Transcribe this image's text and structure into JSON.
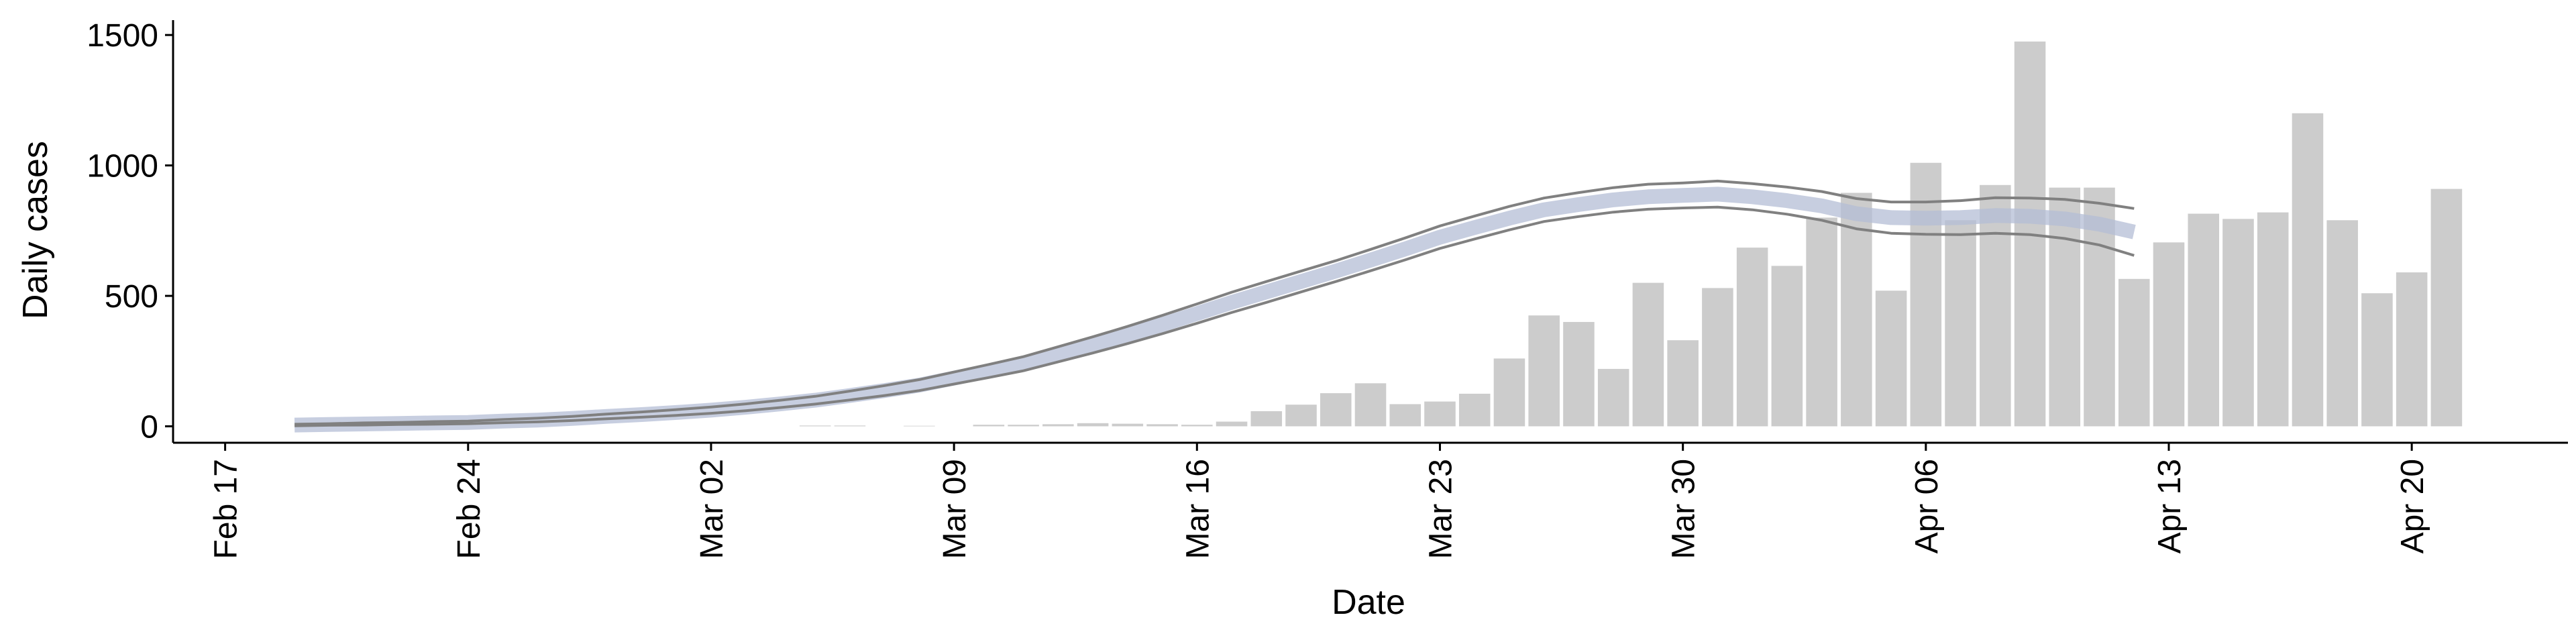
{
  "chart_data": {
    "type": "bar",
    "x_label": "Date",
    "y_label": "Daily cases",
    "categories": [
      "Feb 17",
      null,
      null,
      null,
      null,
      null,
      null,
      "Feb 24",
      null,
      null,
      null,
      null,
      null,
      null,
      "Mar 02",
      null,
      null,
      null,
      null,
      null,
      null,
      "Mar 09",
      null,
      null,
      null,
      null,
      null,
      null,
      "Mar 16",
      null,
      null,
      null,
      null,
      null,
      null,
      "Mar 23",
      null,
      null,
      null,
      null,
      null,
      null,
      "Mar 30",
      null,
      null,
      null,
      null,
      null,
      null,
      "Apr 06",
      null,
      null,
      null,
      null,
      null,
      null,
      "Apr 13",
      null,
      null,
      null,
      null,
      null,
      null,
      "Apr 20",
      null
    ],
    "ylim": [
      -63,
      1557
    ],
    "yticks": [
      0,
      500,
      1000,
      1500
    ],
    "grid": false,
    "series": [
      {
        "type": "bar",
        "color": "#cccccc",
        "values": [
          null,
          null,
          null,
          null,
          null,
          null,
          null,
          null,
          null,
          null,
          null,
          null,
          null,
          null,
          null,
          null,
          null,
          3,
          3,
          0,
          2,
          0,
          6,
          6,
          8,
          12,
          10,
          8,
          6,
          18,
          58,
          83,
          127,
          165,
          85,
          95,
          125,
          260,
          425,
          400,
          220,
          550,
          330,
          530,
          685,
          615,
          800,
          895,
          520,
          1010,
          790,
          925,
          1475,
          915,
          915,
          565,
          705,
          815,
          795,
          820,
          1200,
          790,
          510,
          590,
          910
        ]
      },
      {
        "type": "band",
        "color": "#b4bdd6",
        "values": [
          null,
          null,
          5,
          7,
          9,
          11,
          13,
          15,
          20,
          24,
          30,
          38,
          45,
          53,
          62,
          73,
          86,
          100,
          118,
          137,
          158,
          185,
          212,
          240,
          276,
          312,
          350,
          390,
          432,
          475,
          515,
          555,
          595,
          637,
          680,
          725,
          762,
          798,
          830,
          850,
          868,
          880,
          885,
          890,
          880,
          865,
          845,
          815,
          800,
          798,
          800,
          808,
          805,
          795,
          775,
          745,
          null,
          null,
          null,
          null,
          null,
          null,
          null,
          null,
          null
        ]
      },
      {
        "type": "line",
        "color": "#808080",
        "values": [
          null,
          null,
          8,
          10,
          13,
          15,
          18,
          20,
          26,
          31,
          38,
          47,
          55,
          64,
          74,
          86,
          100,
          115,
          135,
          156,
          179,
          208,
          237,
          267,
          305,
          343,
          383,
          425,
          469,
          514,
          555,
          595,
          635,
          678,
          722,
          768,
          806,
          843,
          875,
          896,
          915,
          928,
          933,
          940,
          930,
          917,
          900,
          873,
          860,
          860,
          865,
          876,
          875,
          870,
          855,
          835,
          null,
          null,
          null,
          null,
          null,
          null,
          null,
          null,
          null
        ]
      },
      {
        "type": "line",
        "color": "#808080",
        "values": [
          null,
          null,
          2,
          4,
          5,
          7,
          8,
          10,
          14,
          17,
          22,
          29,
          35,
          42,
          50,
          60,
          72,
          85,
          101,
          118,
          137,
          162,
          187,
          213,
          247,
          281,
          317,
          355,
          395,
          436,
          475,
          515,
          555,
          596,
          638,
          682,
          718,
          753,
          785,
          804,
          821,
          832,
          837,
          840,
          830,
          813,
          790,
          757,
          740,
          736,
          735,
          740,
          735,
          720,
          695,
          655,
          null,
          null,
          null,
          null,
          null,
          null,
          null,
          null,
          null
        ]
      }
    ]
  }
}
